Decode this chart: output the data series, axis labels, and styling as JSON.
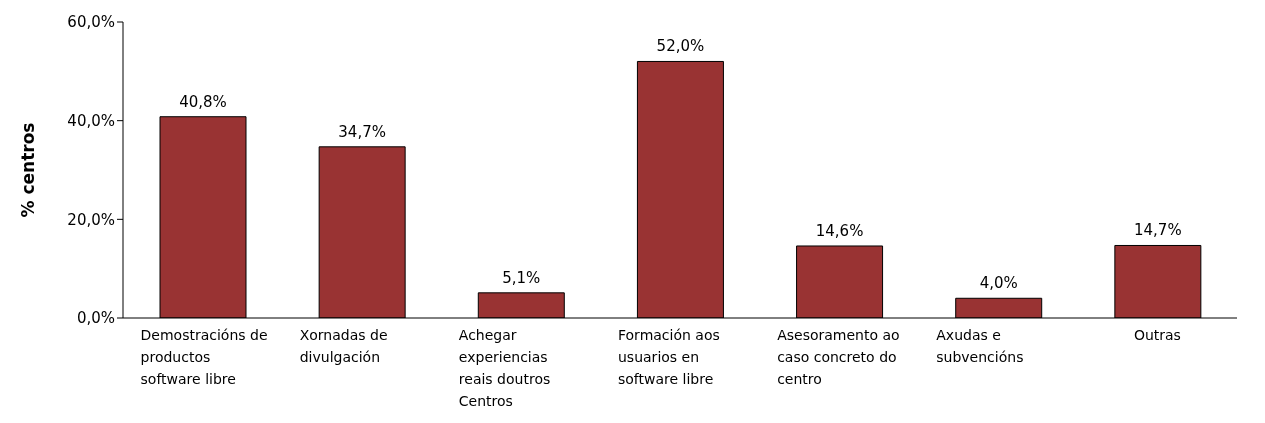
{
  "chart_data": {
    "type": "bar",
    "ylabel": "% centros",
    "categories": [
      "Demostracións de productos software libre",
      "Xornadas de divulgación",
      "Achegar experiencias reais doutros Centros",
      "Formación aos usuarios en software libre",
      "Asesoramento ao caso concreto do centro",
      "Axudas e subvencións",
      "Outras"
    ],
    "values": [
      40.8,
      34.7,
      5.1,
      52.0,
      14.6,
      4.0,
      14.7
    ],
    "value_labels": [
      "40,8%",
      "34,7%",
      "5,1%",
      "52,0%",
      "14,6%",
      "4,0%",
      "14,7%"
    ],
    "color": "#993333",
    "ylim": [
      0,
      60
    ],
    "yticks": [
      {
        "value": 0,
        "label": "0,0%"
      },
      {
        "value": 20,
        "label": "20,0%"
      },
      {
        "value": 40,
        "label": "40,0%"
      },
      {
        "value": 60,
        "label": "60,0%"
      }
    ],
    "grid": false,
    "legend": false
  }
}
